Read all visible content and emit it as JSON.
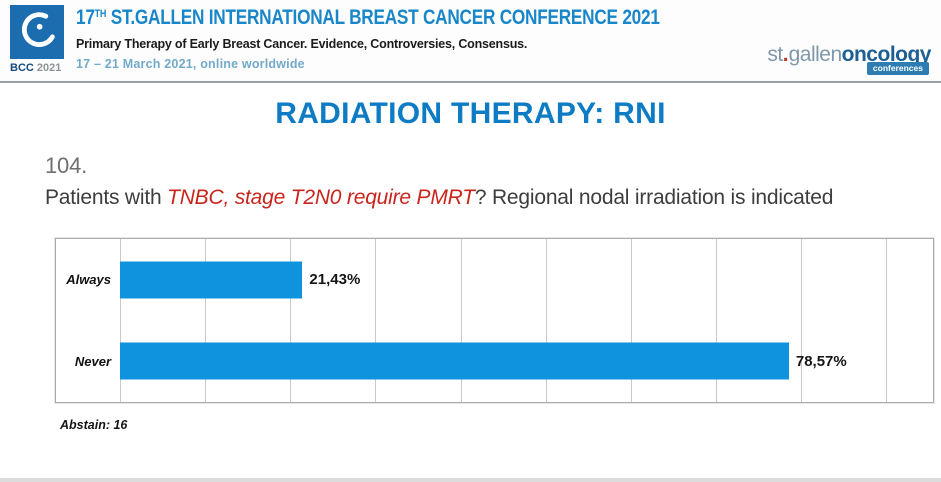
{
  "header": {
    "logo_badge": {
      "bcc": "BCC",
      "year": "2021"
    },
    "conference_title": {
      "number": "17",
      "ordinal": "TH",
      "rest": " ST.GALLEN INTERNATIONAL BREAST CANCER CONFERENCE 2021"
    },
    "subtitle": "Primary Therapy of Early Breast Cancer. Evidence, Controversies, Consensus.",
    "dates": "17 – 21 March 2021, online worldwide",
    "brand": {
      "st": "st",
      "dot": ".",
      "gallen": "gallen",
      "oncology": "oncology",
      "conferences": "conferences"
    }
  },
  "slide": {
    "title": "RADIATION THERAPY: RNI",
    "question": {
      "number": "104.",
      "prefix": "Patients with ",
      "emphasis": "TNBC, stage T2N0 require PMRT",
      "suffix": "? Regional nodal irradiation is indicated"
    },
    "abstain_note": "Abstain: 16"
  },
  "chart_data": {
    "type": "bar",
    "orientation": "horizontal",
    "title": "",
    "xlabel": "",
    "ylabel": "",
    "categories": [
      "Always",
      "Never"
    ],
    "values": [
      21.43,
      78.57
    ],
    "value_labels": [
      "21,43%",
      "78,57%"
    ],
    "xlim": [
      0,
      95.5
    ],
    "gridline_step": 10,
    "grid": true,
    "legend": false
  },
  "colors": {
    "title_blue": "#0d7cc4",
    "conference_blue": "#1886c8",
    "bar_blue": "#0f93de",
    "emphasis_red": "#c9251d",
    "dates_blue": "#72aac9",
    "logo_blue": "#1c6cb0"
  }
}
